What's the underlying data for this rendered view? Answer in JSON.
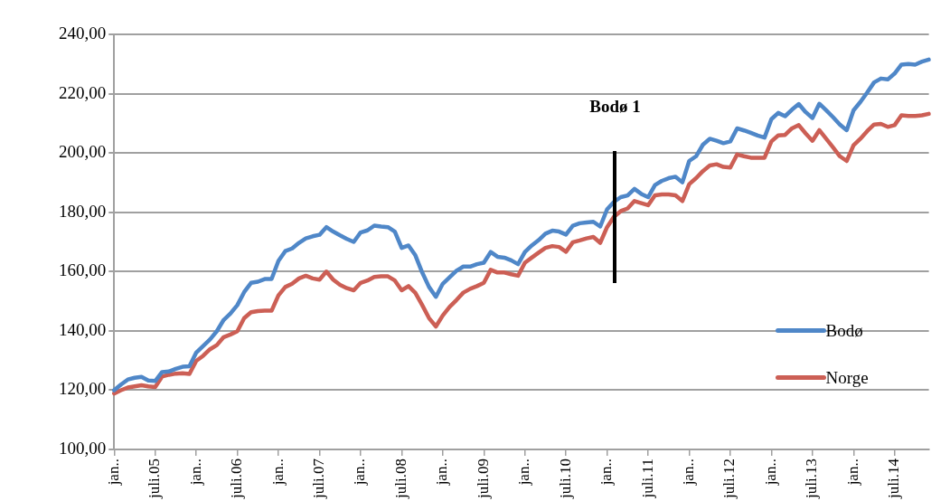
{
  "chart_data": {
    "type": "line",
    "categories": [
      "jan..",
      null,
      null,
      null,
      null,
      null,
      "juli.05",
      null,
      null,
      null,
      null,
      null,
      "jan..",
      null,
      null,
      null,
      null,
      null,
      "juli.06",
      null,
      null,
      null,
      null,
      null,
      "jan..",
      null,
      null,
      null,
      null,
      null,
      "juli.07",
      null,
      null,
      null,
      null,
      null,
      "jan..",
      null,
      null,
      null,
      null,
      null,
      "juli.08",
      null,
      null,
      null,
      null,
      null,
      "jan..",
      null,
      null,
      null,
      null,
      null,
      "juli.09",
      null,
      null,
      null,
      null,
      null,
      "jan..",
      null,
      null,
      null,
      null,
      null,
      "juli.10",
      null,
      null,
      null,
      null,
      null,
      "jan..",
      null,
      null,
      null,
      null,
      null,
      "juli.11",
      null,
      null,
      null,
      null,
      null,
      "jan..",
      null,
      null,
      null,
      null,
      null,
      "juli.12",
      null,
      null,
      null,
      null,
      null,
      "jan..",
      null,
      null,
      null,
      null,
      null,
      "juli.13",
      null,
      null,
      null,
      null,
      null,
      "jan..",
      null,
      null,
      null,
      null,
      null,
      "juli.14",
      null,
      null,
      null,
      null,
      null
    ],
    "series": [
      {
        "name": "Bodø",
        "color": "#4f87c8",
        "values": [
          120.0,
          121.9,
          123.6,
          124.2,
          124.5,
          123.3,
          123.1,
          126.1,
          126.3,
          127.2,
          127.9,
          128.1,
          132.7,
          134.9,
          137.1,
          139.9,
          143.7,
          145.9,
          148.7,
          153.1,
          156.2,
          156.6,
          157.5,
          157.5,
          163.6,
          166.9,
          167.8,
          169.7,
          171.2,
          171.9,
          172.4,
          175.0,
          173.5,
          172.2,
          171.0,
          170.0,
          173.2,
          173.9,
          175.5,
          175.2,
          175.0,
          173.5,
          168.0,
          168.8,
          165.5,
          159.7,
          154.8,
          151.5,
          155.9,
          158.1,
          160.3,
          161.7,
          161.7,
          162.5,
          163.0,
          166.6,
          165.0,
          164.7,
          163.8,
          162.5,
          166.6,
          168.8,
          170.6,
          172.8,
          173.8,
          173.5,
          172.5,
          175.5,
          176.3,
          176.6,
          176.8,
          175.2,
          181.0,
          183.5,
          185.1,
          185.7,
          187.9,
          186.2,
          185.1,
          189.2,
          190.6,
          191.5,
          192.0,
          190.1,
          197.3,
          198.9,
          202.8,
          204.8,
          204.1,
          203.3,
          203.9,
          208.3,
          207.6,
          206.8,
          205.9,
          205.2,
          211.4,
          213.5,
          212.4,
          214.6,
          216.5,
          213.8,
          211.8,
          216.6,
          214.4,
          212.1,
          209.6,
          207.7,
          214.4,
          217.2,
          220.4,
          223.8,
          225.1,
          224.8,
          226.8,
          229.8,
          230.0,
          229.8,
          230.8,
          231.5
        ]
      },
      {
        "name": "Norge",
        "color": "#cc5f55",
        "values": [
          118.9,
          120.0,
          120.9,
          121.3,
          121.7,
          121.3,
          121.1,
          124.6,
          125.2,
          125.6,
          125.7,
          125.5,
          129.9,
          131.6,
          133.8,
          135.2,
          137.9,
          138.8,
          139.9,
          144.3,
          146.3,
          146.7,
          146.8,
          146.8,
          152.0,
          154.8,
          155.9,
          157.7,
          158.6,
          157.7,
          157.3,
          160.0,
          157.3,
          155.5,
          154.4,
          153.7,
          156.2,
          157.0,
          158.2,
          158.4,
          158.4,
          157.0,
          153.7,
          155.1,
          152.8,
          148.7,
          144.3,
          141.5,
          145.2,
          148.1,
          150.4,
          152.9,
          154.2,
          155.1,
          156.2,
          160.6,
          159.7,
          159.7,
          159.1,
          158.6,
          163.0,
          164.7,
          166.4,
          168.0,
          168.6,
          168.3,
          166.7,
          169.9,
          170.5,
          171.2,
          171.7,
          169.7,
          175.0,
          178.5,
          180.4,
          181.3,
          183.8,
          183.1,
          182.4,
          185.7,
          186.0,
          186.0,
          185.7,
          183.8,
          189.5,
          191.5,
          193.9,
          195.8,
          196.2,
          195.3,
          195.1,
          199.5,
          198.9,
          198.4,
          198.4,
          198.4,
          203.9,
          205.9,
          206.1,
          208.3,
          209.4,
          206.6,
          204.1,
          207.7,
          204.8,
          201.9,
          198.9,
          197.3,
          202.6,
          204.8,
          207.4,
          209.6,
          209.8,
          208.8,
          209.4,
          212.7,
          212.5,
          212.5,
          212.7,
          213.2
        ]
      }
    ],
    "ylim": [
      100,
      240
    ],
    "yticks": [
      {
        "value": 100,
        "label": "100,00"
      },
      {
        "value": 120,
        "label": "120,00"
      },
      {
        "value": 140,
        "label": "140,00"
      },
      {
        "value": 160,
        "label": "160,00"
      },
      {
        "value": 180,
        "label": "180,00"
      },
      {
        "value": 200,
        "label": "200,00"
      },
      {
        "value": 220,
        "label": "220,00"
      },
      {
        "value": 240,
        "label": "240,00"
      }
    ],
    "grid": "y",
    "legend": "right",
    "annotations": [
      "Bodø 1"
    ]
  }
}
